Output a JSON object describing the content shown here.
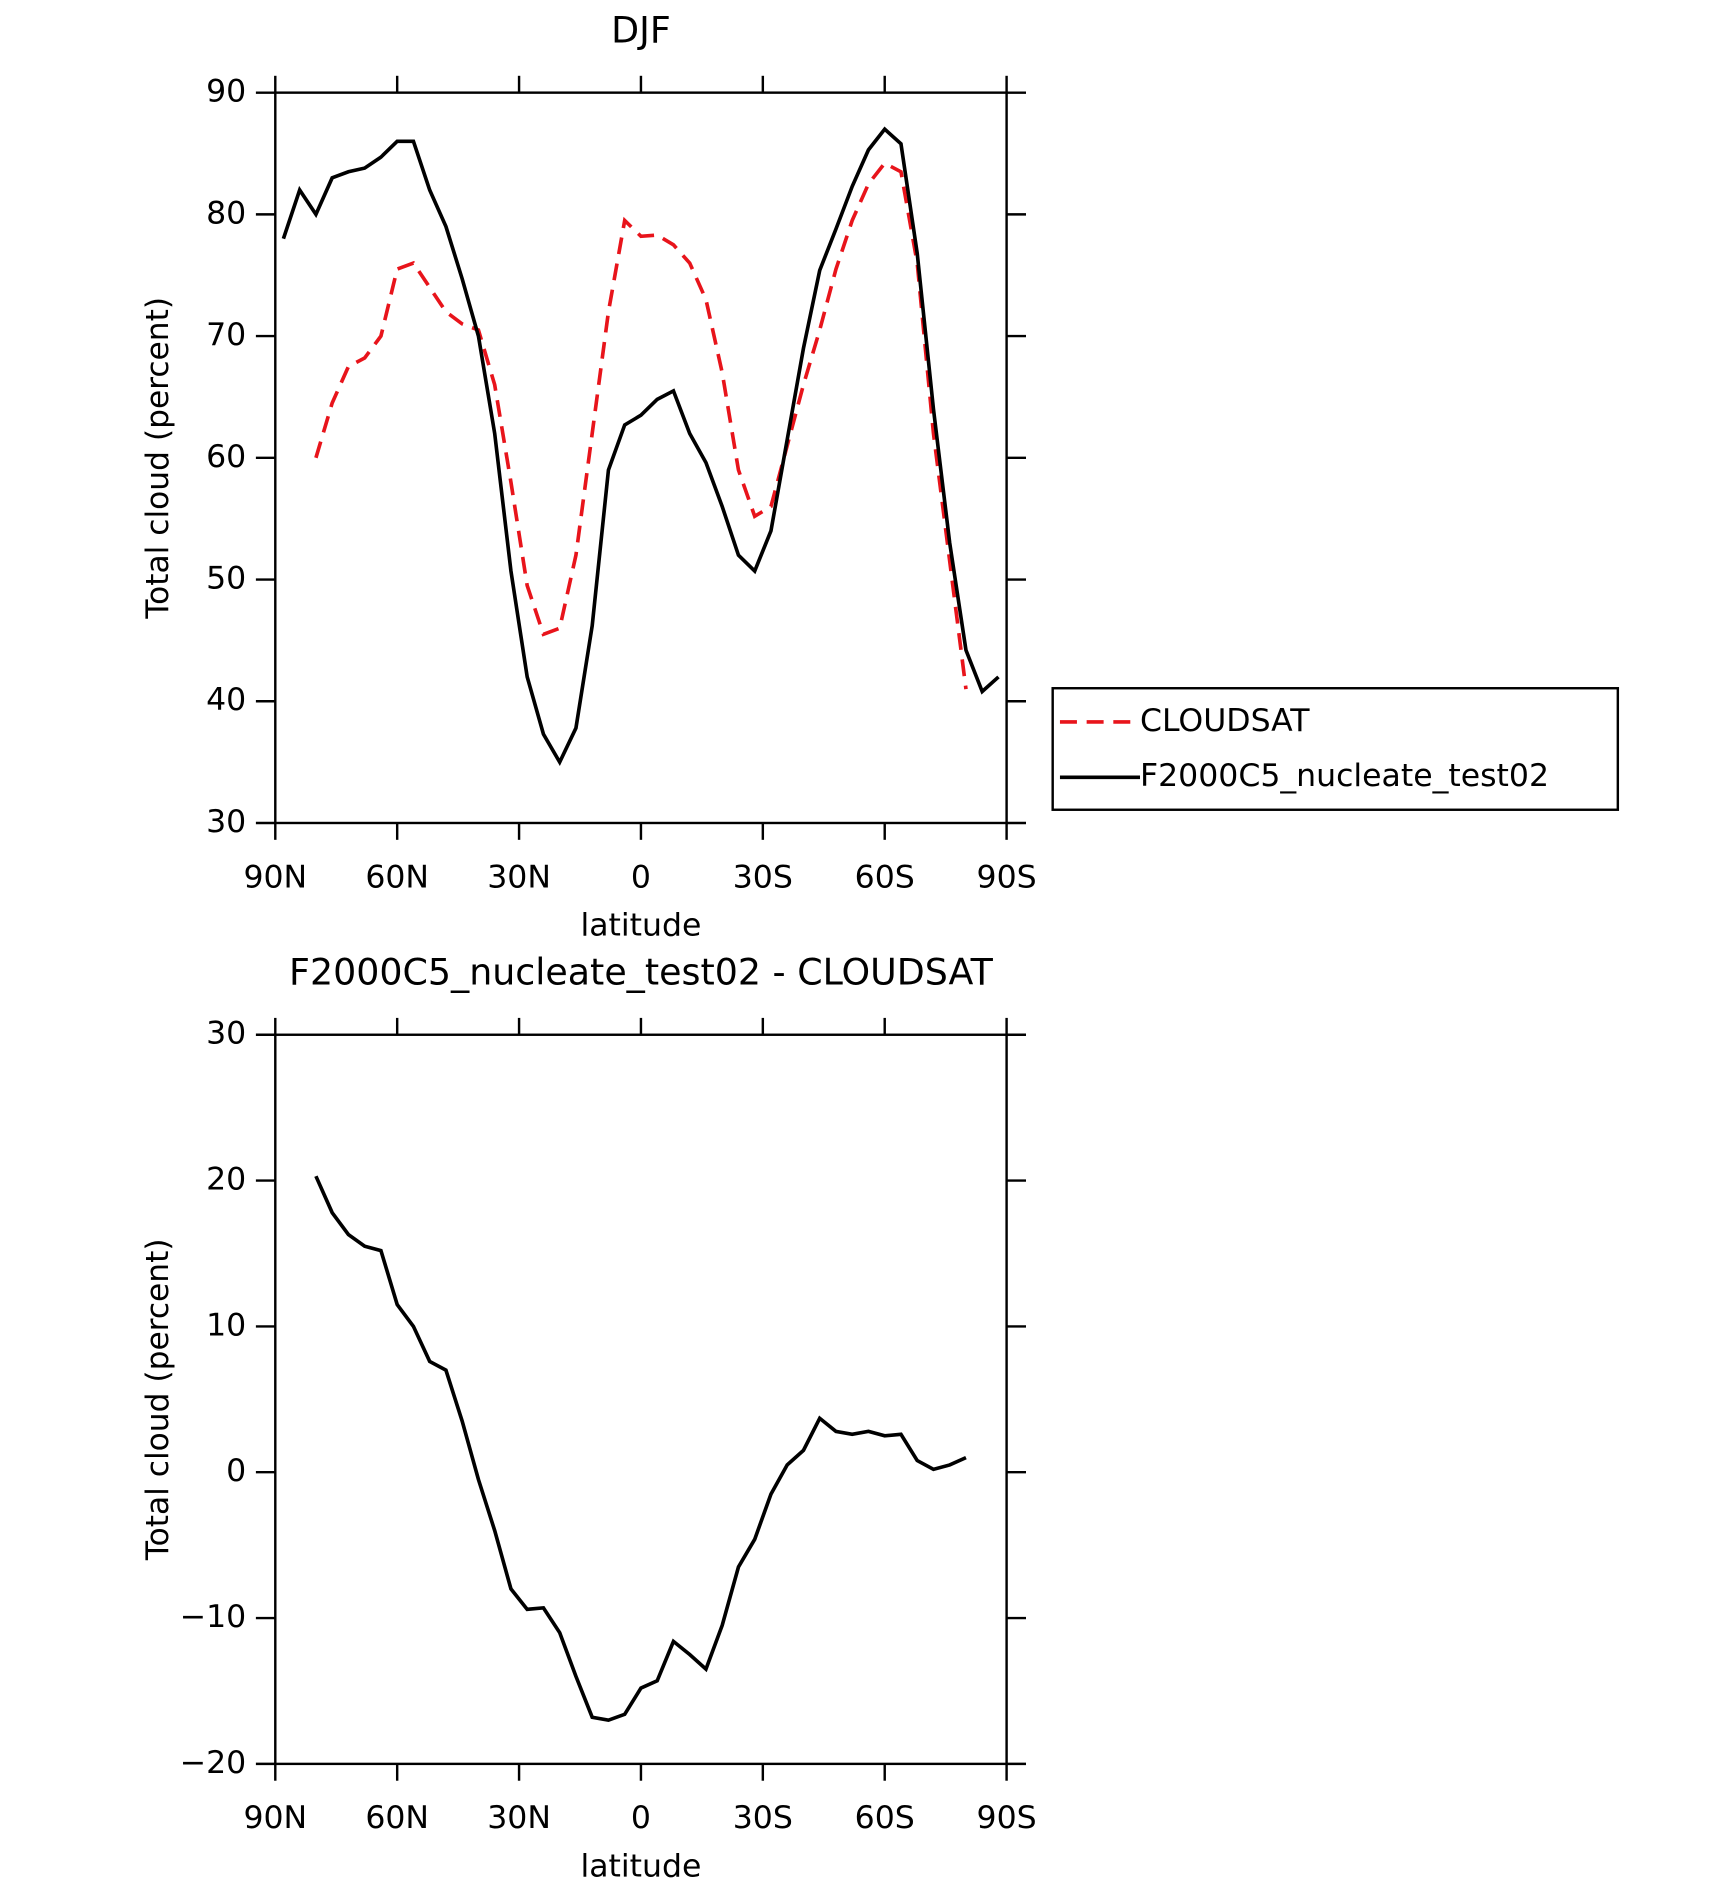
{
  "chart_data": [
    {
      "type": "line",
      "title": "DJF",
      "xlabel": "latitude",
      "ylabel": "Total cloud (percent)",
      "x": [
        88,
        84,
        80,
        76,
        72,
        68,
        64,
        60,
        56,
        52,
        48,
        44,
        40,
        36,
        32,
        28,
        24,
        20,
        16,
        12,
        8,
        4,
        0,
        -4,
        -8,
        -12,
        -16,
        -20,
        -24,
        -28,
        -32,
        -36,
        -40,
        -44,
        -48,
        -52,
        -56,
        -60,
        -64,
        -68,
        -72,
        -76,
        -80,
        -84,
        -88
      ],
      "xlim": [
        90,
        -90
      ],
      "xticks": [
        {
          "value": 90,
          "label": "90N"
        },
        {
          "value": 60,
          "label": "60N"
        },
        {
          "value": 30,
          "label": "30N"
        },
        0,
        {
          "value": -30,
          "label": "30S"
        },
        {
          "value": -60,
          "label": "60S"
        },
        {
          "value": -90,
          "label": "90S"
        }
      ],
      "ylim": [
        30,
        90
      ],
      "yticks": [
        30,
        40,
        50,
        60,
        70,
        80,
        90
      ],
      "legend": "outside-right",
      "series": [
        {
          "name": "CLOUDSAT",
          "color": "#e8141b",
          "dash": "dashed",
          "values": [
            null,
            null,
            60,
            64.5,
            67.5,
            68.2,
            70,
            75.5,
            76,
            74,
            72,
            71,
            70.5,
            66,
            58,
            49.5,
            45.5,
            46,
            52,
            62,
            72,
            79.5,
            78.2,
            78.3,
            77.5,
            76,
            73,
            67,
            59,
            55.2,
            56,
            61,
            66,
            70.5,
            75.5,
            79.5,
            82.5,
            84.2,
            83.5,
            76,
            62,
            51.5,
            41,
            null,
            null
          ]
        },
        {
          "name": "F2000C5_nucleate_test02",
          "color": "#000000",
          "dash": "solid",
          "values": [
            78,
            82,
            80,
            83,
            83.5,
            83.8,
            84.7,
            86,
            86,
            82,
            79,
            74.7,
            70,
            62,
            50.7,
            42,
            37.3,
            35,
            37.8,
            46.2,
            59,
            62.7,
            63.5,
            64.8,
            65.5,
            62,
            59.6,
            56,
            52,
            50.7,
            54,
            61.5,
            69,
            75.4,
            78.8,
            82.3,
            85.3,
            87,
            85.8,
            76.8,
            64,
            53,
            44.2,
            40.8,
            42
          ]
        }
      ]
    },
    {
      "type": "line",
      "title": "F2000C5_nucleate_test02 - CLOUDSAT",
      "xlabel": "latitude",
      "ylabel": "Total cloud (percent)",
      "x": [
        80,
        76,
        72,
        68,
        64,
        60,
        56,
        52,
        48,
        44,
        40,
        36,
        32,
        28,
        24,
        20,
        16,
        12,
        8,
        4,
        0,
        -4,
        -8,
        -12,
        -16,
        -20,
        -24,
        -28,
        -32,
        -36,
        -40,
        -44,
        -48,
        -52,
        -56,
        -60,
        -64,
        -68,
        -72,
        -76,
        -80
      ],
      "xlim": [
        90,
        -90
      ],
      "xticks": [
        {
          "value": 90,
          "label": "90N"
        },
        {
          "value": 60,
          "label": "60N"
        },
        {
          "value": 30,
          "label": "30N"
        },
        0,
        {
          "value": -30,
          "label": "30S"
        },
        {
          "value": -60,
          "label": "60S"
        },
        {
          "value": -90,
          "label": "90S"
        }
      ],
      "ylim": [
        -20,
        30
      ],
      "yticks": [
        {
          "value": -20,
          "label": "−20"
        },
        {
          "value": -10,
          "label": "−10"
        },
        0,
        10,
        20,
        30
      ],
      "series": [
        {
          "color": "#000000",
          "dash": "solid",
          "values": [
            20.3,
            17.8,
            16.3,
            15.5,
            15.2,
            11.5,
            10,
            7.6,
            7,
            3.5,
            -0.5,
            -4,
            -8,
            -9.4,
            -9.3,
            -11,
            -14,
            -16.8,
            -17,
            -16.6,
            -14.8,
            -14.3,
            -11.6,
            -12.5,
            -13.5,
            -10.5,
            -6.5,
            -4.6,
            -1.5,
            0.5,
            1.5,
            3.7,
            2.8,
            2.6,
            2.8,
            2.5,
            2.6,
            0.8,
            0.2,
            0.5,
            1
          ]
        }
      ]
    }
  ]
}
